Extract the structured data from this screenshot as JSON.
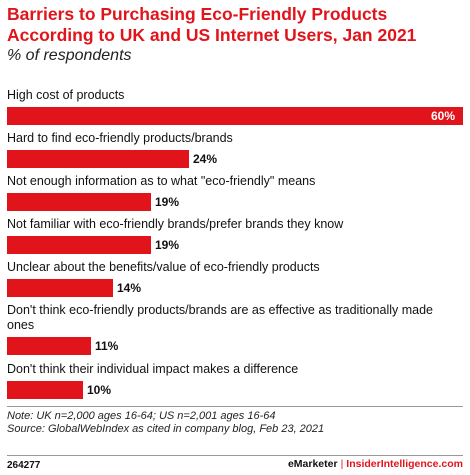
{
  "title": "Barriers to Purchasing Eco-Friendly Products According to UK and US Internet Users, Jan 2021",
  "subtitle": "% of respondents",
  "chart_data": {
    "type": "bar",
    "orientation": "horizontal",
    "title": "Barriers to Purchasing Eco-Friendly Products According to UK and US Internet Users, Jan 2021",
    "subtitle": "% of respondents",
    "categories": [
      "High cost of products",
      "Hard to find eco-friendly products/brands",
      "Not enough information as to what \"eco-friendly\" means",
      "Not familiar with eco-friendly brands/prefer brands they know",
      "Unclear about the benefits/value of eco-friendly products",
      "Don't think eco-friendly products/brands are as effective as traditionally made ones",
      "Don't think their individual impact makes a difference"
    ],
    "values": [
      60,
      24,
      19,
      19,
      14,
      11,
      10
    ],
    "value_labels": [
      "60%",
      "24%",
      "19%",
      "19%",
      "14%",
      "11%",
      "10%"
    ],
    "xlim": [
      0,
      60
    ],
    "grid": false,
    "bar_color": "#e1141b"
  },
  "notes": {
    "note": "Note: UK n=2,000 ages 16-64; US n=2,001 ages 16-64",
    "source": "Source: GlobalWebIndex as cited in company blog, Feb 23, 2021"
  },
  "footer": {
    "id": "264277",
    "brand1": "eMarketer",
    "separator": "|",
    "brand2": "InsiderIntelligence.com"
  }
}
